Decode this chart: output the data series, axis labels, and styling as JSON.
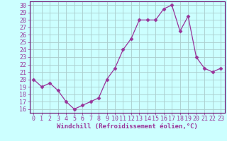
{
  "x": [
    0,
    1,
    2,
    3,
    4,
    5,
    6,
    7,
    8,
    9,
    10,
    11,
    12,
    13,
    14,
    15,
    16,
    17,
    18,
    19,
    20,
    21,
    22,
    23
  ],
  "y": [
    20,
    19,
    19.5,
    18.5,
    17,
    16,
    16.5,
    17,
    17.5,
    20,
    21.5,
    24,
    25.5,
    28,
    28,
    28,
    29.5,
    30,
    26.5,
    28.5,
    23,
    21.5,
    21,
    21.5
  ],
  "line_color": "#993399",
  "marker": "D",
  "marker_size": 2.5,
  "bg_color": "#ccffff",
  "grid_color": "#aacccc",
  "border_color": "#660066",
  "xlabel": "Windchill (Refroidissement éolien,°C)",
  "xlabel_fontsize": 6.5,
  "xtick_labels": [
    "0",
    "1",
    "2",
    "3",
    "4",
    "5",
    "6",
    "7",
    "8",
    "9",
    "10",
    "11",
    "12",
    "13",
    "14",
    "15",
    "16",
    "17",
    "18",
    "19",
    "20",
    "21",
    "22",
    "23"
  ],
  "ytick_labels": [
    "16",
    "17",
    "18",
    "19",
    "20",
    "21",
    "22",
    "23",
    "24",
    "25",
    "26",
    "27",
    "28",
    "29",
    "30"
  ],
  "ylim": [
    15.5,
    30.5
  ],
  "xlim": [
    -0.5,
    23.5
  ],
  "tick_fontsize": 6,
  "tick_color": "#993399",
  "label_color": "#993399"
}
